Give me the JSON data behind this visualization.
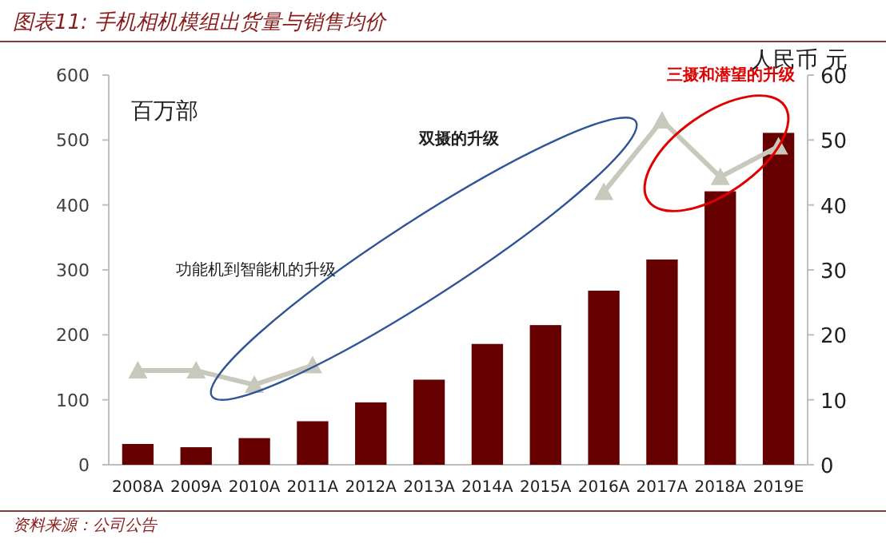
{
  "chart_data": {
    "type": "bar",
    "title": "图表11: 手机相机模组出货量与销售均价",
    "ylabel": "百万部",
    "y2label": "人民币 元",
    "categories": [
      "2008A",
      "2009A",
      "2010A",
      "2011A",
      "2012A",
      "2013A",
      "2014A",
      "2015A",
      "2016A",
      "2017A",
      "2018A",
      "2019E"
    ],
    "series": [
      {
        "color": "#660000",
        "values": [
          32,
          27,
          41,
          67,
          96,
          131,
          186,
          215,
          268,
          316,
          421,
          511
        ]
      },
      {
        "type": "line",
        "axis": "y2",
        "color": "#c8c8bc",
        "marker": "triangle",
        "values": [
          14.5,
          14.5,
          12.3,
          15.3,
          null,
          null,
          null,
          null,
          42,
          53,
          44.3,
          49
        ]
      }
    ],
    "ylim": [
      0,
      600
    ],
    "yticks": [
      0,
      100,
      200,
      300,
      400,
      500,
      600
    ],
    "y2lim": [
      0,
      60
    ],
    "y2ticks": [
      0,
      10,
      20,
      30,
      40,
      50,
      60
    ],
    "line_style": "solid",
    "annotations": [
      "双摄的升级",
      "三摄和潜望的升级",
      "功能机到智能机的升级",
      "资料来源：公司公告"
    ]
  }
}
